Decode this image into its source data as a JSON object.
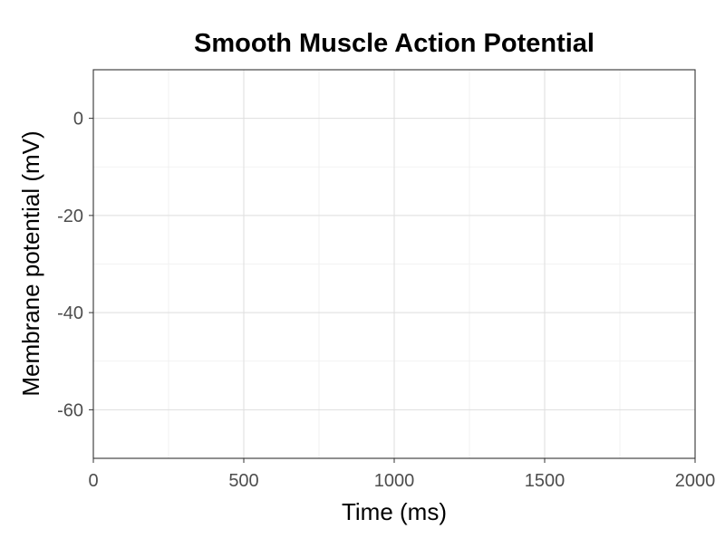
{
  "chart_data": {
    "type": "line",
    "title": "Smooth Muscle Action Potential",
    "xlabel": "Time (ms)",
    "ylabel": "Membrane potential (mV)",
    "xlim": [
      0,
      2000
    ],
    "ylim": [
      -70,
      10
    ],
    "x_ticks": [
      0,
      500,
      1000,
      1500,
      2000
    ],
    "y_ticks": [
      0,
      -20,
      -40,
      -60
    ],
    "x_minor_ticks": [
      250,
      750,
      1250,
      1750
    ],
    "y_minor_ticks": [
      -10,
      -30,
      -50
    ],
    "grid": true,
    "series": []
  },
  "colors": {
    "grid_major": "#dedede",
    "grid_minor": "#efefef",
    "panel_border": "#333333",
    "tick_label": "#4d4d4d",
    "text": "#000000"
  }
}
